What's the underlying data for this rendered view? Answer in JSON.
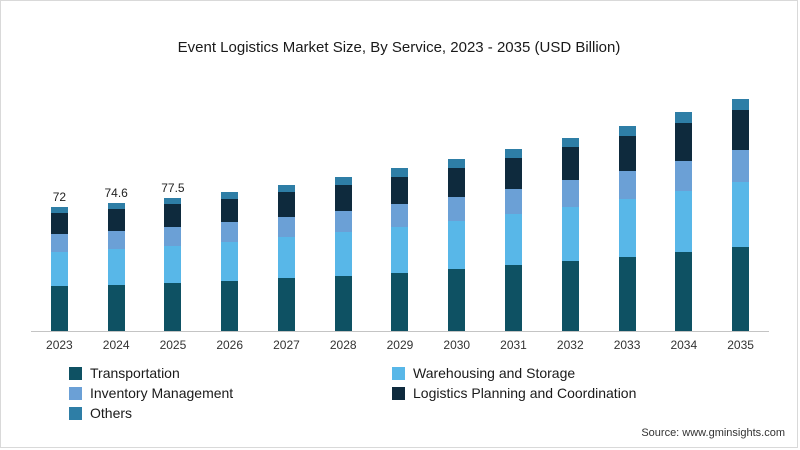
{
  "title": "Event Logistics Market Size, By Service, 2023 - 2035 (USD Billion)",
  "source": "Source: www.gminsights.com",
  "chart_data": {
    "type": "bar",
    "stacked": true,
    "title": "Event Logistics Market Size, By Service, 2023 - 2035 (USD Billion)",
    "xlabel": "",
    "ylabel": "USD Billion",
    "ylim": [
      0,
      150
    ],
    "grid": false,
    "legend_position": "bottom",
    "categories": [
      "2023",
      "2024",
      "2025",
      "2026",
      "2027",
      "2028",
      "2029",
      "2030",
      "2031",
      "2032",
      "2033",
      "2034",
      "2035"
    ],
    "totals": [
      72,
      74.6,
      77.5,
      81,
      85,
      89.5,
      94.5,
      100,
      106,
      112.5,
      119.5,
      127,
      135
    ],
    "shown_total_labels": [
      "72",
      "74.6",
      "77.5",
      "",
      "",
      "",
      "",
      "",
      "",
      "",
      "",
      "",
      ""
    ],
    "series": [
      {
        "name": "Transportation",
        "color": "#0e5163",
        "values": [
          25.9,
          26.9,
          27.9,
          29.2,
          30.6,
          32.2,
          34.0,
          36.0,
          38.2,
          40.5,
          43.0,
          45.7,
          48.6
        ]
      },
      {
        "name": "Warehousing and Storage",
        "color": "#58b7e8",
        "values": [
          20.2,
          20.9,
          21.7,
          22.7,
          23.8,
          25.1,
          26.5,
          28.0,
          29.7,
          31.5,
          33.5,
          35.6,
          37.8
        ]
      },
      {
        "name": "Inventory Management",
        "color": "#6ba0d6",
        "values": [
          10.1,
          10.4,
          10.9,
          11.3,
          11.9,
          12.5,
          13.2,
          14.0,
          14.8,
          15.8,
          16.7,
          17.8,
          18.9
        ]
      },
      {
        "name": "Logistics Planning and Coordination",
        "color": "#0e2a3d",
        "values": [
          12.2,
          12.7,
          13.2,
          13.8,
          14.5,
          15.2,
          16.1,
          17.0,
          18.0,
          19.1,
          20.3,
          21.6,
          23.0
        ]
      },
      {
        "name": "Others",
        "color": "#2e7ea6",
        "values": [
          3.6,
          3.7,
          3.9,
          4.1,
          4.3,
          4.5,
          4.7,
          5.0,
          5.3,
          5.6,
          6.0,
          6.4,
          6.8
        ]
      }
    ]
  }
}
